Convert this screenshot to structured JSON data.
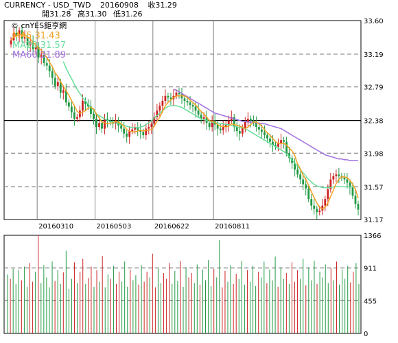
{
  "header": {
    "symbol": "CURRENCY - USD_TWD",
    "date": "20160908",
    "close": "收31.29",
    "open": "開31.28",
    "high": "高31.30",
    "low": "低31.26"
  },
  "colors": {
    "up": "#cc2222",
    "down": "#229944",
    "ma5": "#f0a020",
    "ma20": "#66dd99",
    "ma60": "#a070e0",
    "grid": "#808080",
    "frame": "#000000"
  },
  "chart_data": [
    {
      "type": "candlestick",
      "watermark": "© cnYES鉅亨網",
      "legend": [
        {
          "name": "MA5",
          "value": "31.43",
          "color": "#f0a020"
        },
        {
          "name": "MA20",
          "value": "31.57",
          "color": "#66dd99"
        },
        {
          "name": "MA60",
          "value": "31.89",
          "color": "#a070e0"
        }
      ],
      "y_ticks": [
        "33.60",
        "33.19",
        "32.79",
        "32.38",
        "31.98",
        "31.57",
        "31.17"
      ],
      "ylim": [
        31.17,
        33.6
      ],
      "x_ticks": [
        "20160310",
        "20160503",
        "20160622",
        "20160811"
      ],
      "closes": [
        33.36,
        33.45,
        33.42,
        33.48,
        33.38,
        33.4,
        33.3,
        33.34,
        33.25,
        33.28,
        33.15,
        33.18,
        33.08,
        33.05,
        32.98,
        32.9,
        32.8,
        32.85,
        32.72,
        32.75,
        32.6,
        32.55,
        32.48,
        32.4,
        32.42,
        32.5,
        32.62,
        32.58,
        32.55,
        32.46,
        32.4,
        32.3,
        32.35,
        32.28,
        32.4,
        32.38,
        32.36,
        32.34,
        32.38,
        32.32,
        32.28,
        32.22,
        32.18,
        32.25,
        32.27,
        32.3,
        32.26,
        32.24,
        32.2,
        32.28,
        32.3,
        32.34,
        32.42,
        32.5,
        32.56,
        32.62,
        32.68,
        32.66,
        32.64,
        32.68,
        32.72,
        32.7,
        32.65,
        32.62,
        32.6,
        32.57,
        32.55,
        32.5,
        32.45,
        32.4,
        32.42,
        32.35,
        32.3,
        32.38,
        32.33,
        32.28,
        32.26,
        32.3,
        32.33,
        32.38,
        32.42,
        32.3,
        32.25,
        32.22,
        32.29,
        32.36,
        32.4,
        32.38,
        32.35,
        32.3,
        32.27,
        32.24,
        32.2,
        32.16,
        32.12,
        32.08,
        32.06,
        32.1,
        32.14,
        32.12,
        31.98,
        31.92,
        31.86,
        31.78,
        31.72,
        31.66,
        31.6,
        31.55,
        31.42,
        31.34,
        31.3,
        31.26,
        31.28,
        31.34,
        31.42,
        31.54,
        31.66,
        31.7,
        31.72,
        31.7,
        31.68,
        31.66,
        31.62,
        31.56,
        31.46,
        31.36,
        31.29
      ],
      "ma5": [
        33.36,
        33.4,
        33.41,
        33.43,
        33.42,
        33.43,
        33.4,
        33.38,
        33.33,
        33.31,
        33.26,
        33.24,
        33.19,
        33.15,
        33.09,
        33.04,
        32.96,
        32.92,
        32.85,
        32.8,
        32.74,
        32.69,
        32.62,
        32.56,
        32.49,
        32.47,
        32.48,
        32.5,
        32.53,
        32.54,
        32.52,
        32.46,
        32.41,
        32.36,
        32.35,
        32.34,
        32.35,
        32.35,
        32.37,
        32.36,
        32.34,
        32.31,
        32.27,
        32.25,
        32.24,
        32.24,
        32.25,
        32.26,
        32.25,
        32.26,
        32.26,
        32.27,
        32.31,
        32.37,
        32.42,
        32.49,
        32.56,
        32.6,
        32.63,
        32.66,
        32.68,
        32.68,
        32.68,
        32.68,
        32.66,
        32.63,
        32.6,
        32.57,
        32.53,
        32.49,
        32.46,
        32.42,
        32.38,
        32.37,
        32.36,
        32.33,
        32.31,
        32.31,
        32.3,
        32.31,
        32.34,
        32.33,
        32.32,
        32.31,
        32.3,
        32.28,
        32.3,
        32.33,
        32.36,
        32.36,
        32.34,
        32.31,
        32.27,
        32.23,
        32.2,
        32.16,
        32.12,
        32.1,
        32.1,
        32.1,
        32.08,
        32.04,
        32.01,
        31.95,
        31.85,
        31.79,
        31.71,
        31.66,
        31.59,
        31.51,
        31.44,
        31.37,
        31.32,
        31.3,
        31.32,
        31.37,
        31.45,
        31.53,
        31.61,
        31.66,
        31.69,
        31.69,
        31.68,
        31.65,
        31.6,
        31.54,
        31.43
      ],
      "ma20": [
        null,
        null,
        null,
        null,
        null,
        null,
        null,
        null,
        null,
        null,
        null,
        null,
        null,
        null,
        null,
        null,
        null,
        null,
        null,
        33.1,
        33.02,
        32.95,
        32.89,
        32.82,
        32.76,
        32.71,
        32.66,
        32.62,
        32.58,
        32.54,
        32.5,
        32.46,
        32.44,
        32.42,
        32.4,
        32.38,
        32.37,
        32.36,
        32.35,
        32.34,
        32.33,
        32.32,
        32.31,
        32.3,
        32.29,
        32.29,
        32.29,
        32.3,
        32.31,
        32.33,
        32.35,
        32.38,
        32.41,
        32.44,
        32.47,
        32.5,
        32.53,
        32.55,
        32.56,
        32.56,
        32.56,
        32.55,
        32.54,
        32.52,
        32.5,
        32.48,
        32.46,
        32.44,
        32.42,
        32.4,
        32.39,
        32.38,
        32.37,
        32.36,
        32.35,
        32.35,
        32.34,
        32.34,
        32.33,
        32.33,
        32.32,
        32.31,
        32.3,
        32.29,
        32.29,
        32.28,
        32.26,
        32.24,
        32.22,
        32.2,
        32.18,
        32.16,
        32.14,
        32.12,
        32.1,
        32.08,
        32.06,
        32.04,
        32.02,
        32.0,
        31.97,
        31.94,
        31.9,
        31.86,
        31.82,
        31.78,
        31.74,
        31.7,
        31.66,
        31.63,
        31.6,
        31.58,
        31.57,
        31.56,
        31.56,
        31.56,
        31.56,
        31.57,
        31.57,
        31.57,
        31.57,
        31.57,
        31.57,
        31.57,
        31.57
      ],
      "ma60": [
        null,
        null,
        null,
        null,
        null,
        null,
        null,
        null,
        null,
        null,
        null,
        null,
        null,
        null,
        null,
        null,
        null,
        null,
        null,
        null,
        null,
        null,
        null,
        null,
        null,
        null,
        null,
        null,
        null,
        null,
        null,
        null,
        null,
        null,
        null,
        null,
        null,
        null,
        null,
        null,
        null,
        null,
        null,
        null,
        null,
        null,
        null,
        null,
        null,
        null,
        null,
        null,
        null,
        null,
        null,
        null,
        null,
        null,
        null,
        32.76,
        32.75,
        32.73,
        32.71,
        32.69,
        32.67,
        32.65,
        32.63,
        32.61,
        32.59,
        32.57,
        32.55,
        32.53,
        32.51,
        32.49,
        32.47,
        32.46,
        32.45,
        32.44,
        32.43,
        32.42,
        32.41,
        32.4,
        32.39,
        32.38,
        32.37,
        32.37,
        32.36,
        32.36,
        32.36,
        32.35,
        32.35,
        32.34,
        32.34,
        32.33,
        32.32,
        32.31,
        32.3,
        32.29,
        32.28,
        32.26,
        32.24,
        32.22,
        32.2,
        32.18,
        32.16,
        32.14,
        32.12,
        32.1,
        32.08,
        32.06,
        32.04,
        32.02,
        32.0,
        31.98,
        31.96,
        31.95,
        31.94,
        31.93,
        31.92,
        31.91,
        31.91,
        31.9,
        31.9,
        31.89,
        31.89,
        31.89,
        31.89
      ]
    },
    {
      "type": "bar",
      "y_ticks": [
        "1366",
        "911",
        "455",
        "0"
      ],
      "ylim": [
        0,
        1366
      ],
      "values": [
        820,
        760,
        900,
        690,
        880,
        740,
        930,
        650,
        980,
        720,
        860,
        1366,
        700,
        950,
        780,
        640,
        1000,
        730,
        880,
        690,
        850,
        1150,
        620,
        760,
        990,
        700,
        860,
        1040,
        690,
        770,
        930,
        650,
        880,
        720,
        1080,
        640,
        820,
        760,
        940,
        690,
        860,
        720,
        1000,
        650,
        890,
        740,
        810,
        680,
        950,
        720,
        860,
        780,
        1110,
        640,
        900,
        700,
        840,
        760,
        980,
        690,
        870,
        730,
        1010,
        650,
        920,
        780,
        840,
        700,
        960,
        680,
        890,
        740,
        1020,
        660,
        900,
        780,
        1300,
        640,
        870,
        720,
        950,
        690,
        830,
        760,
        1010,
        680,
        880,
        720,
        940,
        660,
        860,
        780,
        1000,
        700,
        890,
        740,
        1070,
        650,
        920,
        760,
        840,
        690,
        990,
        720,
        880,
        760,
        1040,
        670,
        920,
        740,
        1010,
        690,
        860,
        780,
        960,
        700,
        910,
        740,
        1000,
        680,
        890,
        760,
        940,
        710,
        860,
        980,
        690
      ],
      "colors_seq": "dudddudduududddddudduddduduuduudududduduudddudduduuduudduuudddudduudduddddudduudduuddduddduddudddudduduuudduddduddddududddduu"
    }
  ]
}
